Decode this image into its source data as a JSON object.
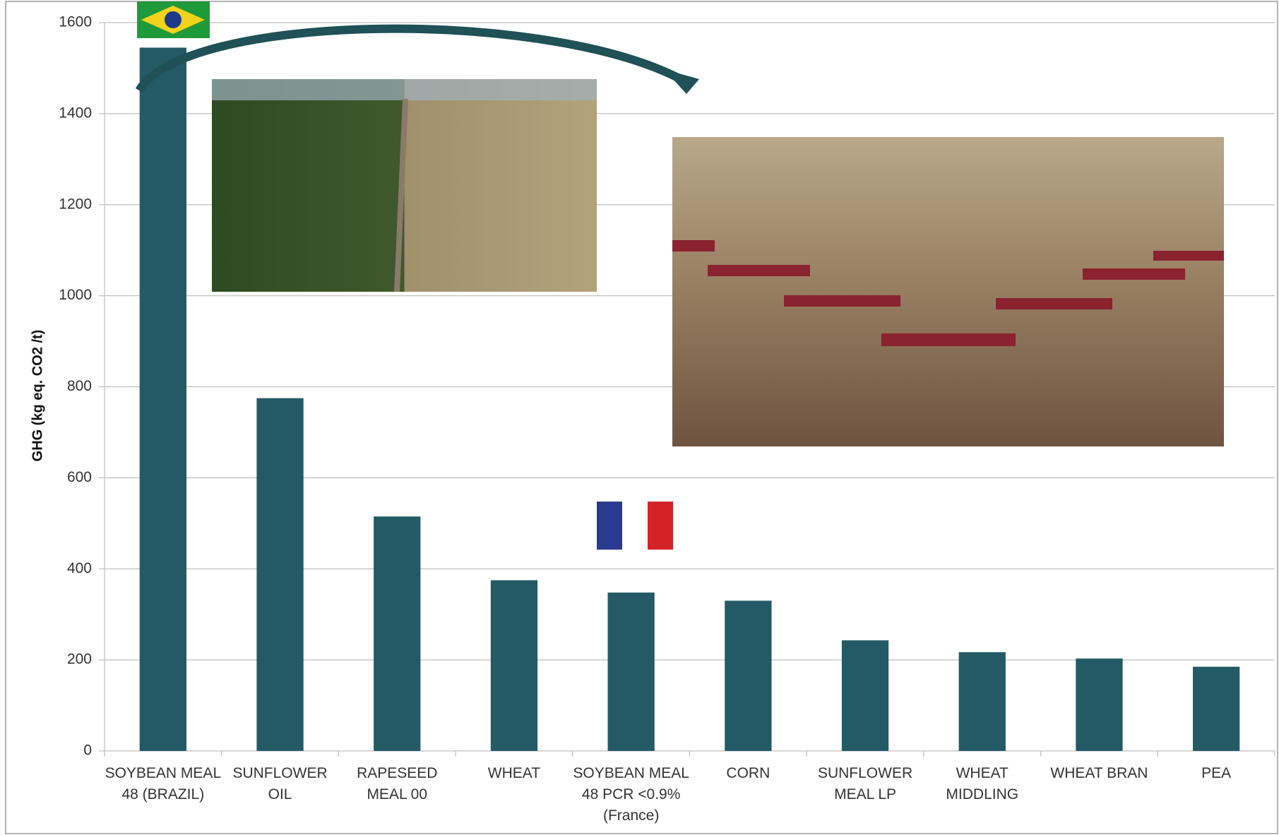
{
  "chart_data": {
    "type": "bar",
    "y_label": "GHG (kg eq. CO2 /t)",
    "categories": [
      "SOYBEAN MEAL\n48 (BRAZIL)",
      "SUNFLOWER\nOIL",
      "RAPESEED\nMEAL 00",
      "WHEAT",
      "SOYBEAN MEAL\n48 PCR <0.9%\n(France)",
      "CORN",
      "SUNFLOWER\nMEAL LP",
      "WHEAT\nMIDDLING",
      "WHEAT BRAN",
      "PEA"
    ],
    "values": [
      1545,
      775,
      515,
      375,
      348,
      330,
      243,
      217,
      203,
      185
    ],
    "color": "#235a66",
    "ylim": [
      0,
      1600
    ],
    "yticks": [
      0,
      200,
      400,
      600,
      800,
      1000,
      1200,
      1400,
      1600
    ],
    "grid": true
  }
}
